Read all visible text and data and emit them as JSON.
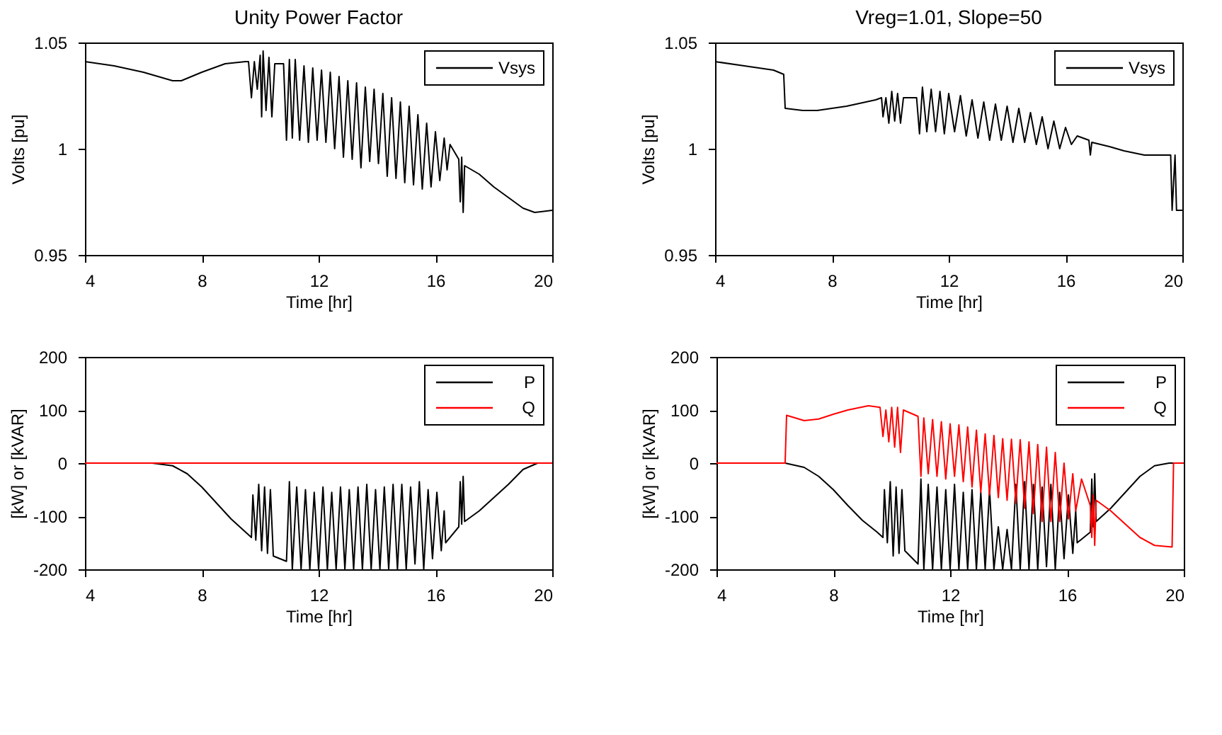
{
  "chart_data": [
    {
      "type": "line",
      "title": "Unity Power Factor",
      "xlabel": "Time [hr]",
      "ylabel": "Volts [pu]",
      "xlim": [
        4,
        20
      ],
      "xticks": [
        4,
        8,
        12,
        16,
        20
      ],
      "ylim": [
        0.95,
        1.05
      ],
      "yticks": [
        0.95,
        1,
        1.05
      ],
      "grid": false,
      "legend": "top right",
      "marker": "none",
      "line_style": "solid",
      "series": [
        {
          "name": "Vsys",
          "color": "#000000",
          "x": [
            4,
            5,
            6,
            7,
            7.3,
            8,
            8.8,
            9.5,
            9.6,
            9.7,
            9.8,
            9.9,
            10.0,
            10.05,
            10.1,
            10.2,
            10.3,
            10.4,
            10.5,
            10.8,
            10.9,
            11.0,
            11.1,
            11.2,
            11.35,
            11.5,
            11.65,
            11.8,
            11.95,
            12.1,
            12.25,
            12.4,
            12.55,
            12.7,
            12.85,
            13.0,
            13.15,
            13.3,
            13.45,
            13.6,
            13.75,
            13.9,
            14.05,
            14.2,
            14.35,
            14.5,
            14.65,
            14.8,
            14.95,
            15.1,
            15.25,
            15.4,
            15.55,
            15.7,
            15.85,
            16.0,
            16.15,
            16.3,
            16.4,
            16.5,
            16.8,
            16.85,
            16.9,
            16.95,
            17.0,
            17.5,
            18,
            18.5,
            19,
            19.4,
            20
          ],
          "values": [
            1.041,
            1.039,
            1.036,
            1.032,
            1.032,
            1.036,
            1.04,
            1.041,
            1.041,
            1.024,
            1.041,
            1.028,
            1.044,
            1.015,
            1.046,
            1.018,
            1.043,
            1.015,
            1.04,
            1.04,
            1.004,
            1.042,
            1.005,
            1.042,
            1.004,
            1.039,
            1.003,
            1.038,
            1.004,
            1.037,
            1.003,
            1.036,
            1.0,
            1.034,
            0.996,
            1.032,
            0.995,
            1.031,
            0.991,
            1.029,
            0.994,
            1.028,
            0.993,
            1.026,
            0.987,
            1.024,
            0.986,
            1.022,
            0.984,
            1.02,
            0.983,
            1.016,
            0.981,
            1.012,
            0.982,
            1.008,
            0.985,
            1.005,
            0.99,
            1.002,
            0.995,
            0.975,
            0.996,
            0.97,
            0.992,
            0.988,
            0.982,
            0.977,
            0.972,
            0.97,
            0.971
          ]
        }
      ]
    },
    {
      "type": "line",
      "title": "Vreg=1.01, Slope=50",
      "xlabel": "Time [hr]",
      "ylabel": "Volts [pu]",
      "xlim": [
        4,
        20
      ],
      "xticks": [
        4,
        8,
        12,
        16,
        20
      ],
      "ylim": [
        0.95,
        1.05
      ],
      "yticks": [
        0.95,
        1,
        1.05
      ],
      "grid": false,
      "legend": "top right",
      "marker": "none",
      "line_style": "solid",
      "series": [
        {
          "name": "Vsys",
          "color": "#000000",
          "x": [
            4,
            5,
            6,
            6.35,
            6.4,
            7,
            7.5,
            8.5,
            9.5,
            9.7,
            9.75,
            9.85,
            9.95,
            10.05,
            10.15,
            10.25,
            10.35,
            10.45,
            10.9,
            11.0,
            11.1,
            11.25,
            11.4,
            11.55,
            11.7,
            11.85,
            12.0,
            12.2,
            12.4,
            12.6,
            12.8,
            13.0,
            13.2,
            13.4,
            13.6,
            13.8,
            14.0,
            14.2,
            14.4,
            14.6,
            14.8,
            15.0,
            15.2,
            15.4,
            15.6,
            15.8,
            16.0,
            16.2,
            16.4,
            16.8,
            16.85,
            16.9,
            17.5,
            18,
            18.7,
            19.6,
            19.65,
            19.75,
            19.8,
            20
          ],
          "values": [
            1.041,
            1.039,
            1.037,
            1.035,
            1.019,
            1.018,
            1.018,
            1.02,
            1.023,
            1.024,
            1.015,
            1.024,
            1.012,
            1.027,
            1.013,
            1.026,
            1.012,
            1.024,
            1.024,
            1.007,
            1.029,
            1.008,
            1.028,
            1.008,
            1.027,
            1.007,
            1.026,
            1.008,
            1.025,
            1.006,
            1.023,
            1.005,
            1.022,
            1.004,
            1.021,
            1.004,
            1.02,
            1.003,
            1.019,
            1.003,
            1.017,
            1.002,
            1.015,
            1.0,
            1.013,
            1.0,
            1.01,
            1.002,
            1.006,
            1.004,
            0.997,
            1.003,
            1.001,
            0.999,
            0.997,
            0.997,
            0.971,
            0.997,
            0.971,
            0.971
          ]
        }
      ]
    },
    {
      "type": "line",
      "xlabel": "Time [hr]",
      "ylabel": "[kW] or [kVAR]",
      "xlim": [
        4,
        20
      ],
      "xticks": [
        4,
        8,
        12,
        16,
        20
      ],
      "ylim": [
        -200,
        200
      ],
      "yticks": [
        -200,
        -100,
        0,
        100,
        200
      ],
      "grid": false,
      "legend": "top right",
      "marker": "none",
      "line_style": "solid",
      "series": [
        {
          "name": "P",
          "color": "#000000",
          "x": [
            4,
            6.3,
            7,
            7.5,
            8,
            8.5,
            9,
            9.5,
            9.7,
            9.75,
            9.85,
            9.95,
            10.05,
            10.15,
            10.25,
            10.35,
            10.45,
            10.9,
            11.0,
            11.1,
            11.25,
            11.4,
            11.55,
            11.7,
            11.85,
            12.0,
            12.15,
            12.3,
            12.45,
            12.6,
            12.75,
            12.9,
            13.05,
            13.2,
            13.35,
            13.5,
            13.65,
            13.8,
            13.95,
            14.1,
            14.25,
            14.4,
            14.55,
            14.7,
            14.85,
            15.0,
            15.15,
            15.3,
            15.45,
            15.6,
            15.75,
            15.9,
            16.05,
            16.2,
            16.3,
            16.35,
            16.8,
            16.85,
            16.9,
            16.95,
            17.0,
            17.5,
            18,
            18.5,
            19,
            19.5,
            20
          ],
          "values": [
            0,
            0,
            -5,
            -20,
            -45,
            -75,
            -105,
            -130,
            -140,
            -60,
            -145,
            -40,
            -165,
            -45,
            -170,
            -50,
            -175,
            -185,
            -35,
            -200,
            -45,
            -200,
            -50,
            -200,
            -55,
            -200,
            -45,
            -200,
            -55,
            -200,
            -45,
            -200,
            -50,
            -200,
            -45,
            -200,
            -40,
            -200,
            -50,
            -200,
            -45,
            -200,
            -40,
            -200,
            -40,
            -200,
            -45,
            -190,
            -35,
            -200,
            -50,
            -180,
            -55,
            -165,
            -90,
            -150,
            -120,
            -35,
            -115,
            -25,
            -110,
            -90,
            -65,
            -40,
            -12,
            0,
            0
          ]
        },
        {
          "name": "Q",
          "color": "#ff0000",
          "x": [
            4,
            20
          ],
          "values": [
            0,
            0
          ]
        }
      ]
    },
    {
      "type": "line",
      "xlabel": "Time [hr]",
      "ylabel": "[kW] or [kVAR]",
      "xlim": [
        4,
        20
      ],
      "xticks": [
        4,
        8,
        12,
        16,
        20
      ],
      "ylim": [
        -200,
        200
      ],
      "yticks": [
        -200,
        -100,
        0,
        100,
        200
      ],
      "grid": false,
      "legend": "top right",
      "marker": "none",
      "line_style": "solid",
      "series": [
        {
          "name": "P",
          "color": "#000000",
          "x": [
            4,
            6.35,
            7,
            7.5,
            8,
            8.5,
            9,
            9.5,
            9.7,
            9.75,
            9.85,
            9.95,
            10.05,
            10.15,
            10.25,
            10.35,
            10.45,
            10.9,
            11.0,
            11.1,
            11.25,
            11.4,
            11.55,
            11.7,
            11.85,
            12.0,
            12.15,
            12.3,
            12.45,
            12.6,
            12.75,
            12.9,
            13.05,
            13.2,
            13.35,
            13.5,
            13.65,
            13.8,
            13.95,
            14.1,
            14.25,
            14.4,
            14.55,
            14.7,
            14.85,
            15.0,
            15.15,
            15.3,
            15.45,
            15.6,
            15.75,
            15.9,
            16.05,
            16.2,
            16.3,
            16.35,
            16.8,
            16.85,
            16.9,
            16.95,
            17.0,
            17.5,
            18,
            18.5,
            19,
            19.5,
            20
          ],
          "values": [
            0,
            0,
            -8,
            -25,
            -50,
            -80,
            -108,
            -130,
            -140,
            -50,
            -150,
            -35,
            -175,
            -45,
            -170,
            -50,
            -165,
            -190,
            -30,
            -200,
            -40,
            -200,
            -45,
            -200,
            -50,
            -200,
            -40,
            -200,
            -55,
            -200,
            -50,
            -200,
            -55,
            -200,
            -50,
            -200,
            -120,
            -200,
            -125,
            -200,
            -40,
            -200,
            -35,
            -200,
            -40,
            -200,
            -45,
            -195,
            -40,
            -200,
            -55,
            -180,
            -60,
            -170,
            -90,
            -150,
            -130,
            -30,
            -120,
            -20,
            -110,
            -85,
            -55,
            -25,
            -5,
            0,
            0
          ]
        },
        {
          "name": "Q",
          "color": "#ff0000",
          "x": [
            4,
            6.35,
            6.4,
            7,
            7.5,
            8,
            8.5,
            9.2,
            9.6,
            9.7,
            9.8,
            9.9,
            10.0,
            10.1,
            10.2,
            10.3,
            10.4,
            10.9,
            11.0,
            11.1,
            11.25,
            11.4,
            11.55,
            11.7,
            11.85,
            12.0,
            12.15,
            12.3,
            12.45,
            12.6,
            12.75,
            12.9,
            13.05,
            13.2,
            13.35,
            13.5,
            13.65,
            13.8,
            13.95,
            14.1,
            14.25,
            14.4,
            14.55,
            14.7,
            14.85,
            15.0,
            15.15,
            15.3,
            15.45,
            15.6,
            15.75,
            15.9,
            16.05,
            16.2,
            16.3,
            16.5,
            16.8,
            16.85,
            16.9,
            16.95,
            17.0,
            17.5,
            18,
            18.5,
            19,
            19.6,
            19.65,
            20
          ],
          "values": [
            0,
            0,
            90,
            80,
            83,
            92,
            100,
            108,
            105,
            50,
            100,
            40,
            105,
            30,
            105,
            20,
            100,
            88,
            -25,
            85,
            -20,
            82,
            -25,
            78,
            -30,
            74,
            -25,
            72,
            -35,
            68,
            -45,
            62,
            -55,
            55,
            -60,
            52,
            -65,
            46,
            -70,
            45,
            -75,
            44,
            -85,
            40,
            -95,
            35,
            -110,
            30,
            -110,
            20,
            -110,
            0,
            -105,
            -20,
            -90,
            -30,
            -80,
            -140,
            -60,
            -155,
            -70,
            -90,
            -115,
            -140,
            -155,
            -158,
            0,
            0
          ]
        }
      ]
    }
  ]
}
